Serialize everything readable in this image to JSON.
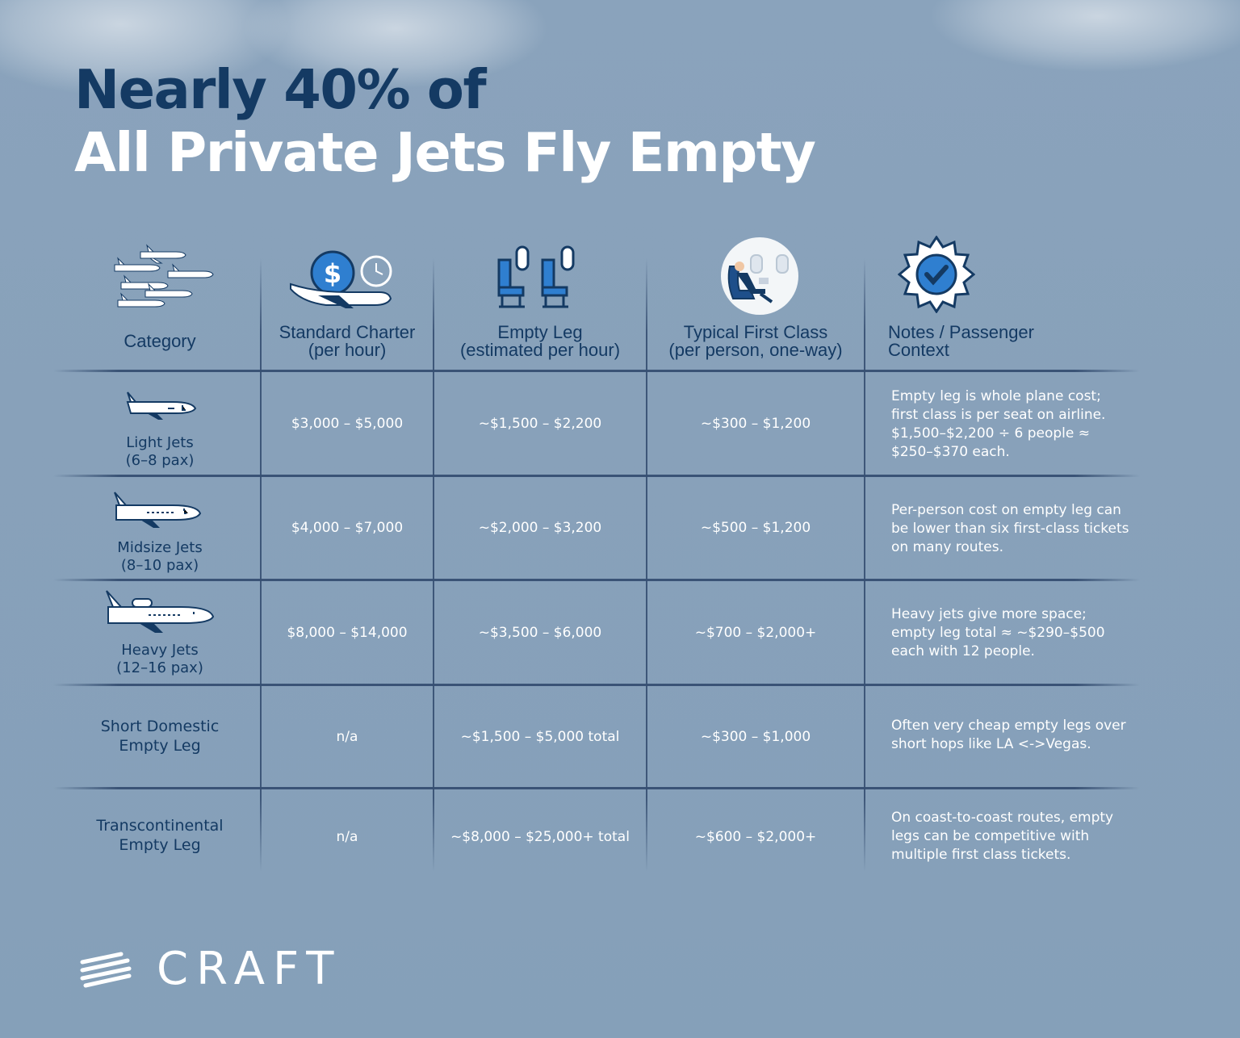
{
  "title": {
    "line1": "Nearly 40% of",
    "line2": "All Private Jets Fly Empty"
  },
  "headers": {
    "category": "Category",
    "standard_charter": {
      "line1": "Standard Charter",
      "line2": "(per hour)"
    },
    "empty_leg": {
      "line1": "Empty Leg",
      "line2": "(estimated per hour)"
    },
    "first_class": {
      "line1": "Typical First Class",
      "line2": "(per person, one-way)"
    },
    "notes": {
      "line1": "Notes / Passenger",
      "line2": "Context"
    }
  },
  "rows": [
    {
      "category": {
        "line1": "Light Jets",
        "line2": "(6–8 pax)"
      },
      "icon": "light-jet-icon",
      "standard_charter": "$3,000 – $5,000",
      "empty_leg": "~$1,500 – $2,200",
      "first_class": "~$300 – $1,200",
      "notes": [
        "Empty leg is whole plane cost;",
        "first class is per seat on airline.",
        "$1,500–$2,200 ÷ 6 people ≈",
        "$250–$370 each."
      ]
    },
    {
      "category": {
        "line1": "Midsize Jets",
        "line2": "(8–10 pax)"
      },
      "icon": "midsize-jet-icon",
      "standard_charter": "$4,000 – $7,000",
      "empty_leg": "~$2,000 – $3,200",
      "first_class": "~$500 – $1,200",
      "notes": [
        "Per-person cost on empty leg can",
        "be lower than six first-class tickets",
        "on many routes."
      ]
    },
    {
      "category": {
        "line1": "Heavy Jets",
        "line2": "(12–16 pax)"
      },
      "icon": "heavy-jet-icon",
      "standard_charter": "$8,000 – $14,000",
      "empty_leg": "~$3,500 – $6,000",
      "first_class": "~$700 – $2,000+",
      "notes": [
        "Heavy jets give more space;",
        "empty leg total ≈ ~$290–$500",
        "each with 12 people."
      ]
    },
    {
      "category": {
        "line1": "Short Domestic",
        "line2": "Empty Leg"
      },
      "standard_charter": "n/a",
      "empty_leg": "~$1,500 – $5,000 total",
      "first_class": "~$300 – $1,000",
      "notes": [
        "Often very cheap empty legs over",
        "short hops like LA <->Vegas."
      ]
    },
    {
      "category": {
        "line1": "Transcontinental",
        "line2": "Empty Leg"
      },
      "standard_charter": "n/a",
      "empty_leg": "~$8,000 – $25,000+ total",
      "first_class": "~$600 – $2,000+",
      "notes": [
        "On coast-to-coast routes, empty",
        "legs can be competitive with",
        "multiple first class tickets."
      ]
    }
  ],
  "logo": {
    "word": "CRAFT"
  },
  "colors": {
    "navy": "#143a63",
    "white": "#ffffff",
    "background": "#88a1ba",
    "accent_blue": "#2f7fd0"
  }
}
